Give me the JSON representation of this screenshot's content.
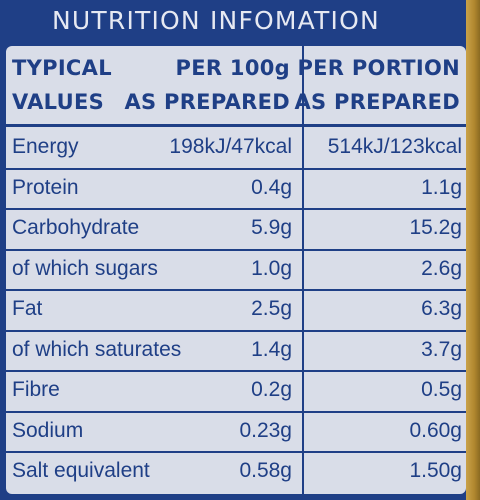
{
  "title": "NUTRITION INFOMATION",
  "header": {
    "col0_line1": "TYPICAL",
    "col0_line2": "VALUES",
    "col1_line1": "PER 100g",
    "col1_line2": "AS PREPARED",
    "col2_line1": "PER PORTION",
    "col2_line2": "AS PREPARED"
  },
  "rows": [
    {
      "nutrient": "Energy",
      "per100": "198kJ/47kcal",
      "portion": "514kJ/123kcal"
    },
    {
      "nutrient": "Protein",
      "per100": "0.4g",
      "portion": "1.1g"
    },
    {
      "nutrient": "Carbohydrate",
      "per100": "5.9g",
      "portion": "15.2g"
    },
    {
      "nutrient": "of which sugars",
      "per100": "1.0g",
      "portion": "2.6g"
    },
    {
      "nutrient": "Fat",
      "per100": "2.5g",
      "portion": "6.3g"
    },
    {
      "nutrient": "of which saturates",
      "per100": "1.4g",
      "portion": "3.7g"
    },
    {
      "nutrient": "Fibre",
      "per100": "0.2g",
      "portion": "0.5g"
    },
    {
      "nutrient": "Sodium",
      "per100": "0.23g",
      "portion": "0.60g"
    },
    {
      "nutrient": "Salt equivalent",
      "per100": "0.58g",
      "portion": "1.50g"
    }
  ],
  "colors": {
    "background": "#1f3f86",
    "panel": "#d9dde8",
    "text": "#1f3f86",
    "title": "#e6e9f2"
  }
}
